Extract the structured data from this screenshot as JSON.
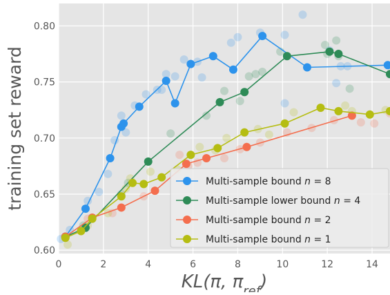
{
  "chart_data": {
    "type": "scatter",
    "xlabel": "KL(π, π_ref)",
    "ylabel": "training set reward",
    "xlim": [
      0,
      14.8
    ],
    "ylim": [
      0.597,
      0.82
    ],
    "x_ticks": [
      0,
      2,
      4,
      6,
      8,
      10,
      12,
      14
    ],
    "y_ticks": [
      0.6,
      0.65,
      0.7,
      0.75,
      0.8
    ],
    "x_tick_labels": [
      "0",
      "2",
      "4",
      "6",
      "8",
      "10",
      "12",
      "14"
    ],
    "y_tick_labels": [
      "0.60",
      "0.65",
      "0.70",
      "0.75",
      "0.80"
    ],
    "grid": true,
    "background": "#e5e5e5",
    "legend_position": "lower-right",
    "series": [
      {
        "name": "Multi-sample bound n = 8",
        "legend_prefix": "Multi-sample bound ",
        "legend_var": "n",
        "legend_value": "8",
        "color": "#2d93ec",
        "line": [
          [
            0.3,
            0.612
          ],
          [
            1.2,
            0.637
          ],
          [
            2.3,
            0.682
          ],
          [
            2.8,
            0.71
          ],
          [
            2.9,
            0.713
          ],
          [
            3.6,
            0.728
          ],
          [
            4.8,
            0.751
          ],
          [
            5.2,
            0.731
          ],
          [
            5.9,
            0.766
          ],
          [
            6.9,
            0.773
          ],
          [
            7.8,
            0.761
          ],
          [
            9.1,
            0.791
          ],
          [
            11.1,
            0.763
          ],
          [
            14.7,
            0.765
          ]
        ],
        "scatter": [
          [
            0.1,
            0.61
          ],
          [
            0.5,
            0.618
          ],
          [
            1.3,
            0.644
          ],
          [
            1.8,
            0.652
          ],
          [
            2.2,
            0.668
          ],
          [
            2.5,
            0.698
          ],
          [
            2.8,
            0.72
          ],
          [
            3.0,
            0.705
          ],
          [
            3.4,
            0.729
          ],
          [
            3.9,
            0.739
          ],
          [
            4.4,
            0.743
          ],
          [
            4.6,
            0.743
          ],
          [
            4.8,
            0.757
          ],
          [
            5.2,
            0.755
          ],
          [
            5.6,
            0.77
          ],
          [
            5.9,
            0.766
          ],
          [
            6.2,
            0.768
          ],
          [
            6.4,
            0.754
          ],
          [
            6.9,
            0.773
          ],
          [
            7.7,
            0.785
          ],
          [
            8.0,
            0.79
          ],
          [
            9.0,
            0.794
          ],
          [
            10.1,
            0.792
          ],
          [
            10.9,
            0.81
          ],
          [
            12.1,
            0.778
          ],
          [
            12.6,
            0.764
          ],
          [
            12.9,
            0.764
          ],
          [
            12.4,
            0.749
          ],
          [
            10.1,
            0.731
          ]
        ]
      },
      {
        "name": "Multi-sample lower bound n = 4",
        "legend_prefix": "Multi-sample lower bound ",
        "legend_var": "n",
        "legend_value": "4",
        "color": "#2e8b57",
        "line": [
          [
            0.3,
            0.612
          ],
          [
            1.2,
            0.62
          ],
          [
            4.0,
            0.679
          ],
          [
            7.2,
            0.732
          ],
          [
            8.3,
            0.741
          ],
          [
            10.2,
            0.773
          ],
          [
            12.1,
            0.777
          ],
          [
            12.5,
            0.775
          ],
          [
            14.8,
            0.757
          ]
        ],
        "scatter": [
          [
            1.1,
            0.622
          ],
          [
            2.8,
            0.65
          ],
          [
            3.1,
            0.66
          ],
          [
            5.0,
            0.704
          ],
          [
            6.6,
            0.72
          ],
          [
            7.4,
            0.742
          ],
          [
            8.1,
            0.733
          ],
          [
            8.5,
            0.755
          ],
          [
            8.8,
            0.757
          ],
          [
            9.1,
            0.759
          ],
          [
            9.9,
            0.777
          ],
          [
            11.9,
            0.783
          ],
          [
            12.4,
            0.787
          ],
          [
            13.0,
            0.744
          ],
          [
            12.0,
            0.775
          ],
          [
            12.5,
            0.773
          ]
        ]
      },
      {
        "name": "Multi-sample bound n = 2",
        "legend_prefix": "Multi-sample bound ",
        "legend_var": "n",
        "legend_value": "2",
        "color": "#f46e4e",
        "line": [
          [
            0.3,
            0.612
          ],
          [
            1.5,
            0.629
          ],
          [
            2.8,
            0.638
          ],
          [
            4.3,
            0.653
          ],
          [
            5.7,
            0.677
          ],
          [
            6.6,
            0.682
          ],
          [
            8.4,
            0.692
          ],
          [
            13.1,
            0.72
          ]
        ],
        "scatter": [
          [
            1.3,
            0.628
          ],
          [
            2.4,
            0.633
          ],
          [
            3.8,
            0.648
          ],
          [
            5.4,
            0.685
          ],
          [
            5.8,
            0.675
          ],
          [
            6.2,
            0.678
          ],
          [
            7.4,
            0.682
          ],
          [
            8.1,
            0.69
          ],
          [
            9.0,
            0.696
          ],
          [
            10.2,
            0.705
          ],
          [
            11.3,
            0.709
          ],
          [
            12.3,
            0.716
          ],
          [
            13.5,
            0.714
          ],
          [
            14.1,
            0.713
          ],
          [
            14.8,
            0.722
          ]
        ]
      },
      {
        "name": "Multi-sample bound n = 1",
        "legend_prefix": "Multi-sample bound ",
        "legend_var": "n",
        "legend_value": "1",
        "color": "#b5bd12",
        "line": [
          [
            0.3,
            0.611
          ],
          [
            1.0,
            0.617
          ],
          [
            1.5,
            0.628
          ],
          [
            2.8,
            0.648
          ],
          [
            3.3,
            0.66
          ],
          [
            3.8,
            0.659
          ],
          [
            4.6,
            0.665
          ],
          [
            5.9,
            0.685
          ],
          [
            7.1,
            0.691
          ],
          [
            8.3,
            0.705
          ],
          [
            10.1,
            0.713
          ],
          [
            11.7,
            0.727
          ],
          [
            12.5,
            0.724
          ],
          [
            13.9,
            0.721
          ],
          [
            14.8,
            0.724
          ]
        ],
        "scatter": [
          [
            0.4,
            0.605
          ],
          [
            1.3,
            0.622
          ],
          [
            2.2,
            0.633
          ],
          [
            3.0,
            0.655
          ],
          [
            3.2,
            0.664
          ],
          [
            4.1,
            0.67
          ],
          [
            5.3,
            0.672
          ],
          [
            6.3,
            0.692
          ],
          [
            7.0,
            0.689
          ],
          [
            7.5,
            0.7
          ],
          [
            8.9,
            0.708
          ],
          [
            9.4,
            0.703
          ],
          [
            10.5,
            0.723
          ],
          [
            12.8,
            0.729
          ],
          [
            13.1,
            0.724
          ],
          [
            14.6,
            0.725
          ]
        ]
      }
    ]
  }
}
